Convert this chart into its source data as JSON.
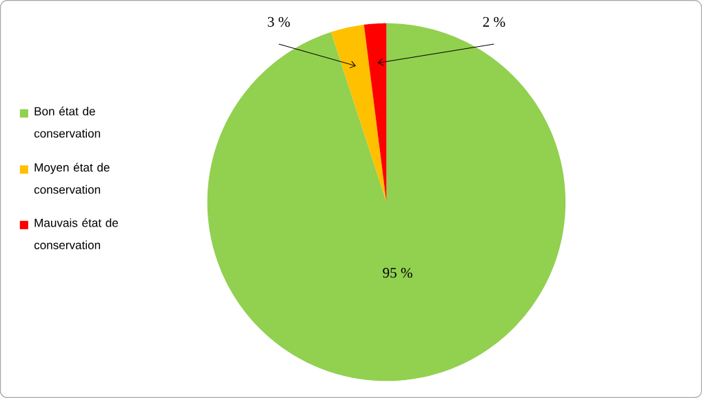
{
  "chart_data": {
    "type": "pie",
    "categories": [
      "Bon état de conservation",
      "Moyen état de conservation",
      "Mauvais état de conservation"
    ],
    "values": [
      95,
      3,
      2
    ],
    "colors": [
      "#92d050",
      "#ffc000",
      "#ff0000"
    ],
    "value_labels": [
      "95 %",
      "3 %",
      "2 %"
    ],
    "legend": "left"
  }
}
